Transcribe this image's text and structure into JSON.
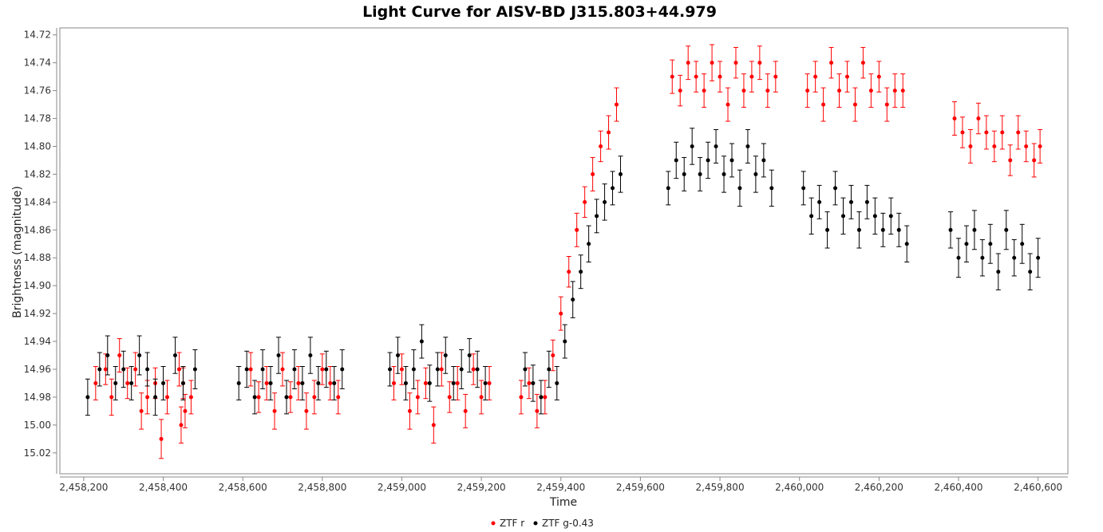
{
  "chart_data": {
    "type": "scatter",
    "title": "Light Curve for AISV-BD J315.803+44.979",
    "xlabel": "Time",
    "ylabel": "Brightness (magnitude)",
    "xlim": [
      2458140,
      2460675
    ],
    "ylim": [
      15.035,
      14.715
    ],
    "y_inverted": true,
    "x_ticks": [
      2458200,
      2458400,
      2458600,
      2458800,
      2459000,
      2459200,
      2459400,
      2459600,
      2459800,
      2460000,
      2460200,
      2460400,
      2460600
    ],
    "x_tick_labels": [
      "2,458,200",
      "2,458,400",
      "2,458,600",
      "2,458,800",
      "2,459,000",
      "2,459,200",
      "2,459,400",
      "2,459,600",
      "2,459,800",
      "2,460,000",
      "2,460,200",
      "2,460,400",
      "2,460,600"
    ],
    "y_ticks": [
      14.72,
      14.74,
      14.76,
      14.78,
      14.8,
      14.82,
      14.84,
      14.86,
      14.88,
      14.9,
      14.92,
      14.94,
      14.96,
      14.98,
      15.0,
      15.02
    ],
    "y_tick_labels": [
      "14.72",
      "14.74",
      "14.76",
      "14.78",
      "14.80",
      "14.82",
      "14.84",
      "14.86",
      "14.88",
      "14.90",
      "14.92",
      "14.94",
      "14.96",
      "14.98",
      "15.00",
      "15.02"
    ],
    "grid": false,
    "legend_position": "bottom-center",
    "series": [
      {
        "name": "ZTF r",
        "color": "#ff0000",
        "x": [
          2458230,
          2458255,
          2458270,
          2458290,
          2458310,
          2458330,
          2458345,
          2458360,
          2458380,
          2458395,
          2458410,
          2458440,
          2458445,
          2458450,
          2458455,
          2458470,
          2458620,
          2458640,
          2458660,
          2458680,
          2458700,
          2458720,
          2458740,
          2458760,
          2458780,
          2458800,
          2458820,
          2458840,
          2458980,
          2459000,
          2459020,
          2459040,
          2459060,
          2459080,
          2459100,
          2459120,
          2459140,
          2459160,
          2459180,
          2459200,
          2459220,
          2459300,
          2459320,
          2459340,
          2459360,
          2459380,
          2459400,
          2459420,
          2459440,
          2459460,
          2459480,
          2459500,
          2459520,
          2459540,
          2459680,
          2459700,
          2459720,
          2459740,
          2459760,
          2459780,
          2459800,
          2459820,
          2459840,
          2459860,
          2459880,
          2459900,
          2459920,
          2459940,
          2460020,
          2460040,
          2460060,
          2460080,
          2460100,
          2460120,
          2460140,
          2460160,
          2460180,
          2460200,
          2460220,
          2460240,
          2460260,
          2460390,
          2460410,
          2460430,
          2460450,
          2460470,
          2460490,
          2460510,
          2460530,
          2460550,
          2460570,
          2460590,
          2460605
        ],
        "y": [
          14.97,
          14.96,
          14.98,
          14.95,
          14.97,
          14.96,
          14.99,
          14.98,
          14.97,
          15.01,
          14.98,
          14.96,
          15.0,
          14.97,
          14.99,
          14.98,
          14.96,
          14.98,
          14.97,
          14.99,
          14.96,
          14.98,
          14.97,
          14.99,
          14.98,
          14.96,
          14.97,
          14.98,
          14.97,
          14.96,
          14.99,
          14.98,
          14.97,
          15.0,
          14.96,
          14.98,
          14.97,
          14.99,
          14.96,
          14.98,
          14.97,
          14.98,
          14.97,
          14.99,
          14.98,
          14.95,
          14.92,
          14.89,
          14.86,
          14.84,
          14.82,
          14.8,
          14.79,
          14.77,
          14.75,
          14.76,
          14.74,
          14.75,
          14.76,
          14.74,
          14.75,
          14.77,
          14.74,
          14.76,
          14.75,
          14.74,
          14.76,
          14.75,
          14.76,
          14.75,
          14.77,
          14.74,
          14.76,
          14.75,
          14.77,
          14.74,
          14.76,
          14.75,
          14.77,
          14.76,
          14.76,
          14.78,
          14.79,
          14.8,
          14.78,
          14.79,
          14.8,
          14.79,
          14.81,
          14.79,
          14.8,
          14.81,
          14.8
        ],
        "err": [
          0.012,
          0.011,
          0.013,
          0.012,
          0.011,
          0.012,
          0.013,
          0.012,
          0.011,
          0.014,
          0.012,
          0.012,
          0.013,
          0.011,
          0.012,
          0.012,
          0.012,
          0.011,
          0.012,
          0.013,
          0.012,
          0.011,
          0.012,
          0.013,
          0.012,
          0.011,
          0.012,
          0.012,
          0.012,
          0.011,
          0.013,
          0.012,
          0.011,
          0.013,
          0.012,
          0.011,
          0.012,
          0.012,
          0.011,
          0.012,
          0.012,
          0.012,
          0.011,
          0.012,
          0.012,
          0.011,
          0.012,
          0.011,
          0.012,
          0.011,
          0.012,
          0.011,
          0.012,
          0.012,
          0.012,
          0.011,
          0.012,
          0.011,
          0.012,
          0.013,
          0.011,
          0.012,
          0.011,
          0.012,
          0.011,
          0.012,
          0.012,
          0.011,
          0.012,
          0.011,
          0.012,
          0.011,
          0.012,
          0.011,
          0.012,
          0.011,
          0.012,
          0.011,
          0.012,
          0.012,
          0.012,
          0.012,
          0.011,
          0.012,
          0.011,
          0.012,
          0.011,
          0.012,
          0.011,
          0.012,
          0.011,
          0.012,
          0.012
        ]
      },
      {
        "name": "ZTF g-0.43",
        "color": "#000000",
        "x": [
          2458210,
          2458240,
          2458260,
          2458280,
          2458300,
          2458320,
          2458340,
          2458360,
          2458380,
          2458400,
          2458430,
          2458450,
          2458480,
          2458590,
          2458610,
          2458630,
          2458650,
          2458670,
          2458690,
          2458710,
          2458730,
          2458750,
          2458770,
          2458790,
          2458810,
          2458830,
          2458850,
          2458970,
          2458990,
          2459010,
          2459030,
          2459050,
          2459070,
          2459090,
          2459110,
          2459130,
          2459150,
          2459170,
          2459190,
          2459210,
          2459310,
          2459330,
          2459350,
          2459370,
          2459390,
          2459410,
          2459430,
          2459450,
          2459470,
          2459490,
          2459510,
          2459530,
          2459550,
          2459670,
          2459690,
          2459710,
          2459730,
          2459750,
          2459770,
          2459790,
          2459810,
          2459830,
          2459850,
          2459870,
          2459890,
          2459910,
          2459930,
          2460010,
          2460030,
          2460050,
          2460070,
          2460090,
          2460110,
          2460130,
          2460150,
          2460170,
          2460190,
          2460210,
          2460230,
          2460250,
          2460270,
          2460380,
          2460400,
          2460420,
          2460440,
          2460460,
          2460480,
          2460500,
          2460520,
          2460540,
          2460560,
          2460580,
          2460600
        ],
        "y": [
          14.98,
          14.96,
          14.95,
          14.97,
          14.96,
          14.97,
          14.95,
          14.96,
          14.98,
          14.97,
          14.95,
          14.97,
          14.96,
          14.97,
          14.96,
          14.98,
          14.96,
          14.97,
          14.95,
          14.98,
          14.96,
          14.97,
          14.95,
          14.97,
          14.96,
          14.97,
          14.96,
          14.96,
          14.95,
          14.97,
          14.96,
          14.94,
          14.97,
          14.96,
          14.95,
          14.97,
          14.96,
          14.95,
          14.96,
          14.97,
          14.96,
          14.97,
          14.98,
          14.96,
          14.97,
          14.94,
          14.91,
          14.89,
          14.87,
          14.85,
          14.84,
          14.83,
          14.82,
          14.83,
          14.81,
          14.82,
          14.8,
          14.82,
          14.81,
          14.8,
          14.82,
          14.81,
          14.83,
          14.8,
          14.82,
          14.81,
          14.83,
          14.83,
          14.85,
          14.84,
          14.86,
          14.83,
          14.85,
          14.84,
          14.86,
          14.84,
          14.85,
          14.86,
          14.85,
          14.86,
          14.87,
          14.86,
          14.88,
          14.87,
          14.86,
          14.88,
          14.87,
          14.89,
          14.86,
          14.88,
          14.87,
          14.89,
          14.88
        ],
        "err": [
          0.013,
          0.012,
          0.014,
          0.012,
          0.013,
          0.012,
          0.014,
          0.012,
          0.013,
          0.012,
          0.013,
          0.012,
          0.014,
          0.012,
          0.013,
          0.012,
          0.014,
          0.012,
          0.013,
          0.012,
          0.014,
          0.012,
          0.013,
          0.012,
          0.013,
          0.012,
          0.014,
          0.012,
          0.013,
          0.012,
          0.014,
          0.012,
          0.013,
          0.012,
          0.013,
          0.012,
          0.014,
          0.012,
          0.013,
          0.012,
          0.012,
          0.013,
          0.012,
          0.013,
          0.012,
          0.012,
          0.013,
          0.012,
          0.013,
          0.012,
          0.013,
          0.012,
          0.013,
          0.012,
          0.013,
          0.012,
          0.013,
          0.012,
          0.013,
          0.012,
          0.013,
          0.012,
          0.013,
          0.012,
          0.013,
          0.012,
          0.013,
          0.012,
          0.013,
          0.012,
          0.013,
          0.012,
          0.013,
          0.012,
          0.013,
          0.012,
          0.013,
          0.012,
          0.013,
          0.012,
          0.013,
          0.013,
          0.014,
          0.013,
          0.014,
          0.013,
          0.014,
          0.013,
          0.014,
          0.013,
          0.014,
          0.013,
          0.014
        ]
      }
    ]
  }
}
